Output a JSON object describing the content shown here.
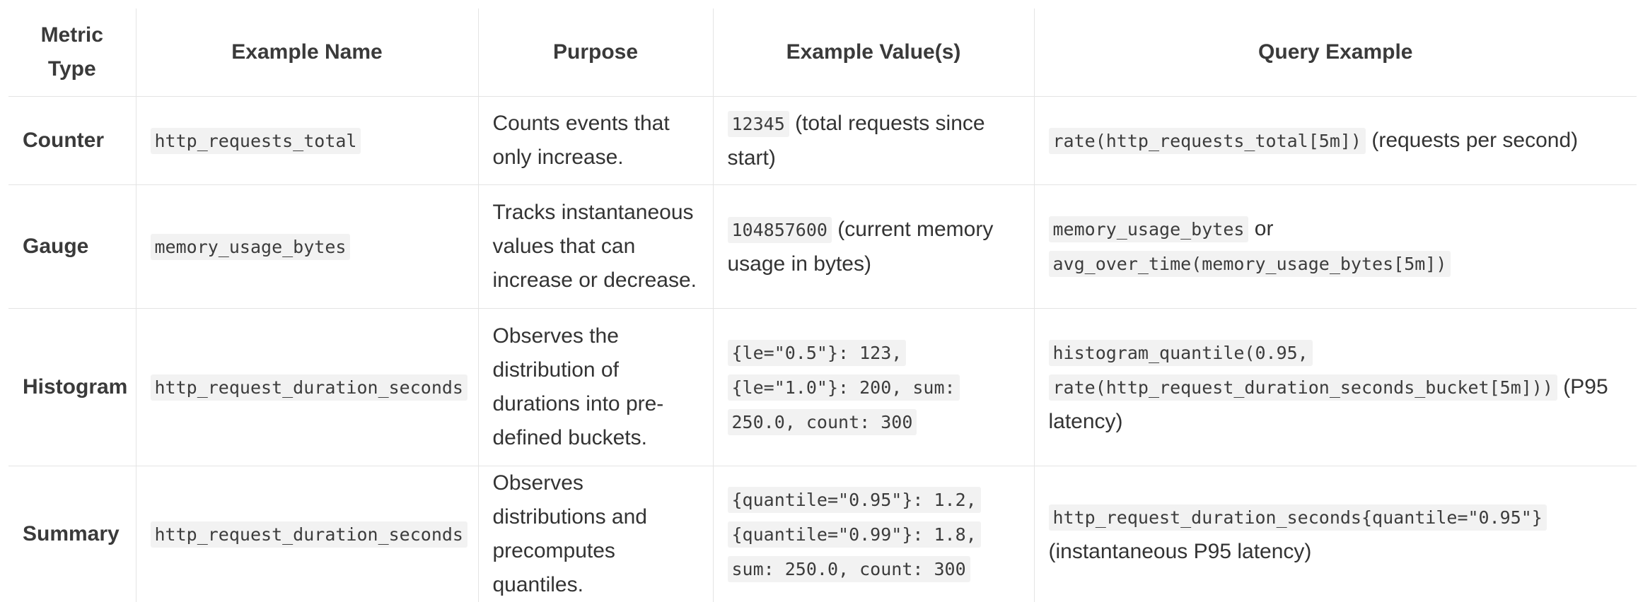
{
  "table": {
    "headers": [
      "Metric Type",
      "Example Name",
      "Purpose",
      "Example Value(s)",
      "Query Example"
    ],
    "rows": [
      {
        "type": "Counter",
        "name": "http_requests_total",
        "purpose": "Counts events that only increase.",
        "value_code": "12345",
        "value_note": " (total requests since start)",
        "query_code": "rate(http_requests_total[5m])",
        "query_mid": "",
        "query_code2": "",
        "query_note": " (requests per second)"
      },
      {
        "type": "Gauge",
        "name": "memory_usage_bytes",
        "purpose": "Tracks instantaneous values that can increase or decrease.",
        "value_code": "104857600",
        "value_note": " (current memory usage in bytes)",
        "query_code": "memory_usage_bytes",
        "query_mid": " or ",
        "query_code2": "avg_over_time(memory_usage_bytes[5m])",
        "query_note": ""
      },
      {
        "type": "Histogram",
        "name": "http_request_duration_seconds",
        "purpose": "Observes the distribution of durations into pre-defined buckets.",
        "value_code": "{le=\"0.5\"}: 123, {le=\"1.0\"}: 200, sum: 250.0, count: 300",
        "value_note": "",
        "query_code": "histogram_quantile(0.95, rate(http_request_duration_seconds_bucket[5m]))",
        "query_mid": "",
        "query_code2": "",
        "query_note": " (P95 latency)"
      },
      {
        "type": "Summary",
        "name": "http_request_duration_seconds",
        "purpose": "Observes distributions and precomputes quantiles.",
        "value_code": "{quantile=\"0.95\"}: 1.2, {quantile=\"0.99\"}: 1.8, sum: 250.0, count: 300",
        "value_note": "",
        "query_code": "http_request_duration_seconds{quantile=\"0.95\"}",
        "query_mid": "",
        "query_code2": "",
        "query_note": " (instantaneous P95 latency)"
      }
    ]
  }
}
